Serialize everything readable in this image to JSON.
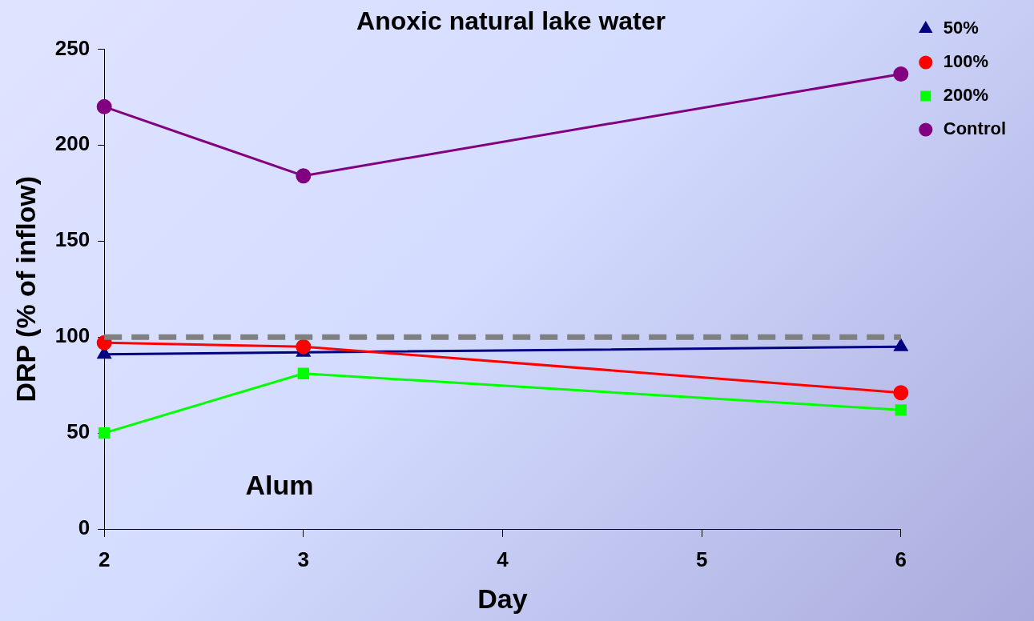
{
  "chart_data": {
    "type": "line",
    "title": "Anoxic natural lake water",
    "xlabel": "Day",
    "ylabel": "DRP (% of inflow)",
    "x": [
      2,
      3,
      6
    ],
    "series": [
      {
        "name": "50%",
        "color": "#000080",
        "marker": "triangle",
        "values": [
          91,
          92,
          95
        ]
      },
      {
        "name": "100%",
        "color": "#ff0000",
        "marker": "circle",
        "values": [
          97,
          95,
          71
        ]
      },
      {
        "name": "200%",
        "color": "#00ff00",
        "marker": "square",
        "values": [
          50,
          81,
          62
        ]
      },
      {
        "name": "Control",
        "color": "#800080",
        "marker": "circle",
        "values": [
          220,
          184,
          237
        ]
      }
    ],
    "xlim": [
      2,
      6
    ],
    "xticks": [
      2,
      3,
      4,
      5,
      6
    ],
    "ylim": [
      0,
      250
    ],
    "yticks": [
      0,
      50,
      100,
      150,
      200,
      250
    ],
    "ref_lines": [
      {
        "axis": "y",
        "value": 100,
        "color": "#808080",
        "line_style": "dashed"
      }
    ],
    "annotations": [
      "Alum"
    ],
    "grid": false,
    "legend": "top right"
  }
}
